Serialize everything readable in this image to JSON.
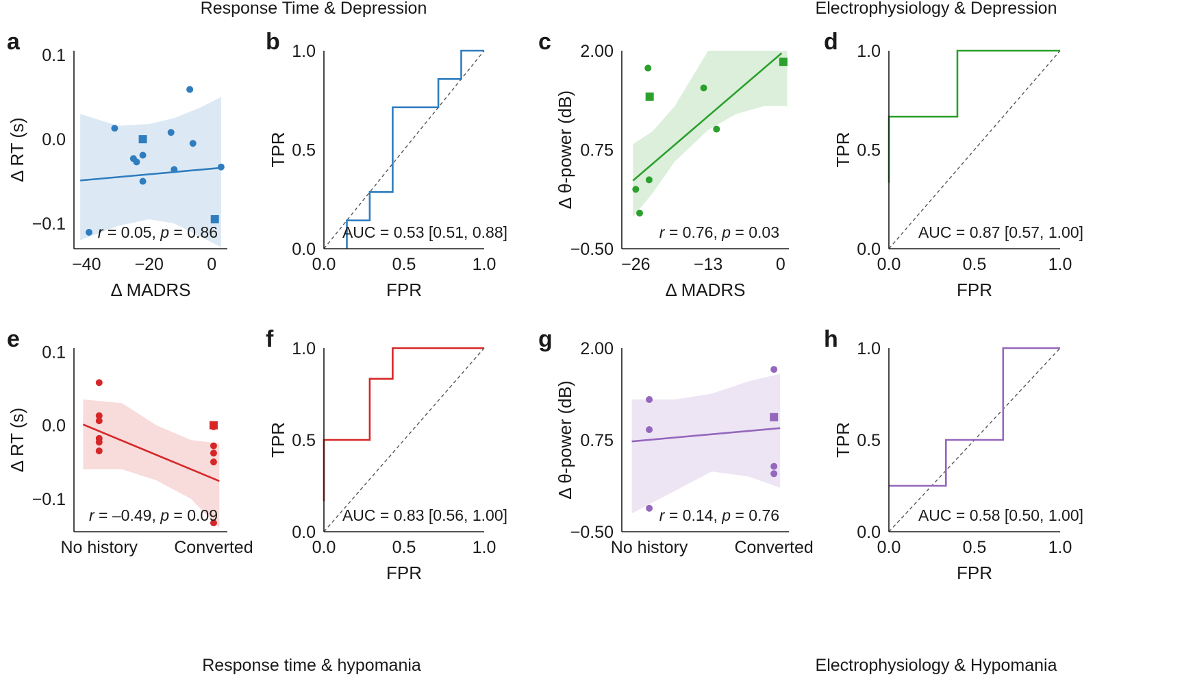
{
  "sections": {
    "top_left": "Response Time & Depression",
    "top_right": "Electrophysiology & Depression",
    "bottom_left": "Response time & hypomania",
    "bottom_right": "Electrophysiology & Hypomania"
  },
  "colors": {
    "blue": "#2f7dbf",
    "green": "#2ca02c",
    "red": "#d62728",
    "purple": "#9467bd",
    "axis": "#1a1a1a",
    "chance": "#555555"
  },
  "chart_data": [
    {
      "id": "a",
      "panel_label": "a",
      "type": "scatter",
      "color": "#2f7dbf",
      "xlabel": "Δ MADRS",
      "ylabel": "Δ RT (s)",
      "xlim": [
        -44,
        5
      ],
      "ylim": [
        -0.13,
        0.105
      ],
      "xticks": [
        {
          "v": -40,
          "t": "−40"
        },
        {
          "v": -20,
          "t": "−20"
        },
        {
          "v": 0,
          "t": "0"
        }
      ],
      "yticks": [
        {
          "v": 0.1,
          "t": "0.1"
        },
        {
          "v": 0.0,
          "t": "0.0"
        },
        {
          "v": -0.1,
          "t": "−0.1"
        }
      ],
      "points": [
        {
          "x": -31,
          "y": 0.013
        },
        {
          "x": -25,
          "y": -0.023
        },
        {
          "x": -24,
          "y": -0.027
        },
        {
          "x": -22,
          "y": -0.019
        },
        {
          "x": -22,
          "y": -0.05
        },
        {
          "x": -13,
          "y": 0.008
        },
        {
          "x": -12,
          "y": -0.036
        },
        {
          "x": -7,
          "y": 0.059
        },
        {
          "x": -6,
          "y": -0.005
        },
        {
          "x": 3,
          "y": -0.033
        }
      ],
      "square_points": [
        {
          "x": -22,
          "y": 0.0
        },
        {
          "x": 1,
          "y": -0.095
        }
      ],
      "fit": {
        "x": [
          -42,
          3
        ],
        "y": [
          -0.049,
          -0.034
        ]
      },
      "band": {
        "x": [
          -42,
          -30,
          -20,
          -12,
          -4,
          3
        ],
        "lo": [
          -0.12,
          -0.103,
          -0.095,
          -0.1,
          -0.115,
          -0.128
        ],
        "hi": [
          0.03,
          0.016,
          0.018,
          0.025,
          0.037,
          0.05
        ]
      },
      "annotation": {
        "r": "0.05",
        "p": "0.86"
      }
    },
    {
      "id": "b",
      "panel_label": "b",
      "type": "line",
      "color": "#2f7dbf",
      "xlabel": "FPR",
      "ylabel": "TPR",
      "xlim": [
        0,
        1
      ],
      "ylim": [
        0,
        1
      ],
      "xticks": [
        {
          "v": 0,
          "t": "0.0"
        },
        {
          "v": 0.5,
          "t": "0.5"
        },
        {
          "v": 1,
          "t": "1.0"
        }
      ],
      "yticks": [
        {
          "v": 0,
          "t": "0.0"
        },
        {
          "v": 0.5,
          "t": "0.5"
        },
        {
          "v": 1,
          "t": "1.0"
        }
      ],
      "roc": {
        "x": [
          0.143,
          0.143,
          0.286,
          0.286,
          0.429,
          0.429,
          0.714,
          0.714,
          0.857,
          0.857,
          1.0
        ],
        "y": [
          0.0,
          0.143,
          0.143,
          0.286,
          0.286,
          0.714,
          0.714,
          0.857,
          0.857,
          1.0,
          1.0
        ]
      },
      "auc": "0.53",
      "ci": "[0.51, 0.88]"
    },
    {
      "id": "c",
      "panel_label": "c",
      "type": "scatter",
      "color": "#2ca02c",
      "xlabel": "Δ MADRS",
      "ylabel": "Δ θ-power (dB)",
      "xlim": [
        -28.5,
        1.5
      ],
      "ylim": [
        -0.5,
        2.0
      ],
      "xticks": [
        {
          "v": -26,
          "t": "−26"
        },
        {
          "v": -13,
          "t": "−13"
        },
        {
          "v": 0,
          "t": "0"
        }
      ],
      "yticks": [
        {
          "v": 2.0,
          "t": "2.00"
        },
        {
          "v": 0.75,
          "t": "0.75"
        },
        {
          "v": -0.5,
          "t": "−0.50"
        }
      ],
      "points": [
        {
          "x": -26,
          "y": 0.25
        },
        {
          "x": -25.3,
          "y": -0.05
        },
        {
          "x": -23.8,
          "y": 1.78
        },
        {
          "x": -23.6,
          "y": 0.37
        },
        {
          "x": -13.8,
          "y": 1.53
        },
        {
          "x": -11.5,
          "y": 1.01
        }
      ],
      "square_points": [
        {
          "x": -23.5,
          "y": 1.42
        },
        {
          "x": 0.5,
          "y": 1.86
        }
      ],
      "fit": {
        "x": [
          -26.5,
          0.2
        ],
        "y": [
          0.36,
          1.97
        ]
      },
      "band": {
        "x": [
          -26.5,
          -23,
          -19,
          -13,
          -8,
          -3,
          1.2
        ],
        "lo": [
          -0.1,
          0.2,
          0.6,
          1.0,
          1.2,
          1.3,
          1.3
        ],
        "hi": [
          0.82,
          0.98,
          1.3,
          2.0,
          2.0,
          2.0,
          2.0
        ]
      },
      "annotation": {
        "r": "0.76",
        "p": "0.03"
      }
    },
    {
      "id": "d",
      "panel_label": "d",
      "type": "line",
      "color": "#2ca02c",
      "xlabel": "FPR",
      "ylabel": "TPR",
      "xlim": [
        0,
        1
      ],
      "ylim": [
        0,
        1
      ],
      "xticks": [
        {
          "v": 0,
          "t": "0.0"
        },
        {
          "v": 0.5,
          "t": "0.5"
        },
        {
          "v": 1,
          "t": "1.0"
        }
      ],
      "yticks": [
        {
          "v": 0,
          "t": "0.0"
        },
        {
          "v": 0.5,
          "t": "0.5"
        },
        {
          "v": 1,
          "t": "1.0"
        }
      ],
      "roc": {
        "x": [
          0.0,
          0.0,
          0.4,
          0.4,
          1.0
        ],
        "y": [
          0.333,
          0.667,
          0.667,
          1.0,
          1.0
        ]
      },
      "auc": "0.87",
      "ci": "[0.57, 1.00]"
    },
    {
      "id": "e",
      "panel_label": "e",
      "type": "scatter",
      "color": "#d62728",
      "xlabel": "",
      "ylabel": "Δ RT (s)",
      "xlim": [
        -0.22,
        1.12
      ],
      "ylim": [
        -0.145,
        0.105
      ],
      "xticks": [
        {
          "v": 0,
          "t": "No history"
        },
        {
          "v": 1,
          "t": "Converted"
        }
      ],
      "yticks": [
        {
          "v": 0.1,
          "t": "0.1"
        },
        {
          "v": 0.0,
          "t": "0.0"
        },
        {
          "v": -0.1,
          "t": "−0.1"
        }
      ],
      "points": [
        {
          "x": 0,
          "y": 0.058
        },
        {
          "x": 0,
          "y": 0.013
        },
        {
          "x": 0,
          "y": 0.006
        },
        {
          "x": 0,
          "y": -0.018
        },
        {
          "x": 0,
          "y": -0.023
        },
        {
          "x": 0,
          "y": -0.035
        },
        {
          "x": 1,
          "y": -0.002
        },
        {
          "x": 1,
          "y": -0.028
        },
        {
          "x": 1,
          "y": -0.038
        },
        {
          "x": 1,
          "y": -0.05
        },
        {
          "x": 1,
          "y": -0.133
        }
      ],
      "square_points": [
        {
          "x": 1,
          "y": 0.0
        }
      ],
      "fit": {
        "x": [
          -0.14,
          1.05
        ],
        "y": [
          0.001,
          -0.076
        ]
      },
      "band": {
        "x": [
          -0.14,
          0.2,
          0.5,
          0.8,
          1.05
        ],
        "lo": [
          -0.06,
          -0.06,
          -0.075,
          -0.1,
          -0.14
        ],
        "hi": [
          0.035,
          0.03,
          0.0,
          -0.02,
          -0.025
        ]
      },
      "annotation": {
        "r": "–0.49",
        "p": "0.09"
      }
    },
    {
      "id": "f",
      "panel_label": "f",
      "type": "line",
      "color": "#d62728",
      "xlabel": "FPR",
      "ylabel": "TPR",
      "xlim": [
        0,
        1
      ],
      "ylim": [
        0,
        1
      ],
      "xticks": [
        {
          "v": 0,
          "t": "0.0"
        },
        {
          "v": 0.5,
          "t": "0.5"
        },
        {
          "v": 1,
          "t": "1.0"
        }
      ],
      "yticks": [
        {
          "v": 0,
          "t": "0.0"
        },
        {
          "v": 0.5,
          "t": "0.5"
        },
        {
          "v": 1,
          "t": "1.0"
        }
      ],
      "roc": {
        "x": [
          0.0,
          0.0,
          0.286,
          0.286,
          0.429,
          0.429,
          1.0
        ],
        "y": [
          0.167,
          0.5,
          0.5,
          0.833,
          0.833,
          1.0,
          1.0
        ]
      },
      "auc": "0.83",
      "ci": "[0.56, 1.00]"
    },
    {
      "id": "g",
      "panel_label": "g",
      "type": "scatter",
      "color": "#9467bd",
      "xlabel": "",
      "ylabel": "Δ θ-power (dB)",
      "xlim": [
        -0.22,
        1.12
      ],
      "ylim": [
        -0.5,
        2.0
      ],
      "xticks": [
        {
          "v": 0,
          "t": "No history"
        },
        {
          "v": 1,
          "t": "Converted"
        }
      ],
      "yticks": [
        {
          "v": 2.0,
          "t": "2.00"
        },
        {
          "v": 0.75,
          "t": "0.75"
        },
        {
          "v": -0.5,
          "t": "−0.50"
        }
      ],
      "points": [
        {
          "x": 0,
          "y": 1.3
        },
        {
          "x": 0,
          "y": 0.89
        },
        {
          "x": 0,
          "y": -0.18
        },
        {
          "x": 1,
          "y": 1.71
        },
        {
          "x": 1,
          "y": 0.39
        },
        {
          "x": 1,
          "y": 0.29
        }
      ],
      "square_points": [
        {
          "x": 1,
          "y": 1.06
        }
      ],
      "fit": {
        "x": [
          -0.14,
          1.05
        ],
        "y": [
          0.73,
          0.91
        ]
      },
      "band": {
        "x": [
          -0.14,
          0.2,
          0.5,
          0.8,
          1.05
        ],
        "lo": [
          -0.25,
          0.05,
          0.32,
          0.25,
          0.1
        ],
        "hi": [
          1.3,
          1.3,
          1.38,
          1.55,
          1.65
        ]
      },
      "annotation": {
        "r": "0.14",
        "p": "0.76"
      }
    },
    {
      "id": "h",
      "panel_label": "h",
      "type": "line",
      "color": "#9467bd",
      "xlabel": "FPR",
      "ylabel": "TPR",
      "xlim": [
        0,
        1
      ],
      "ylim": [
        0,
        1
      ],
      "xticks": [
        {
          "v": 0,
          "t": "0.0"
        },
        {
          "v": 0.5,
          "t": "0.5"
        },
        {
          "v": 1,
          "t": "1.0"
        }
      ],
      "yticks": [
        {
          "v": 0,
          "t": "0.0"
        },
        {
          "v": 0.5,
          "t": "0.5"
        },
        {
          "v": 1,
          "t": "1.0"
        }
      ],
      "roc": {
        "x": [
          0.0,
          0.333,
          0.333,
          0.667,
          0.667,
          1.0
        ],
        "y": [
          0.25,
          0.25,
          0.5,
          0.5,
          1.0,
          1.0
        ]
      },
      "auc": "0.58",
      "ci": "[0.50, 1.00]"
    }
  ]
}
